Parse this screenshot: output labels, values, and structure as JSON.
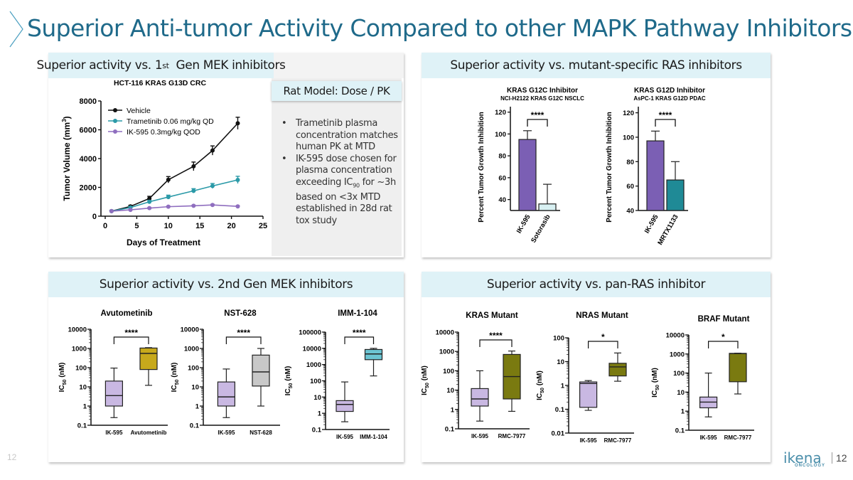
{
  "title": "Superior Anti-tumor Activity Compared to other MAPK Pathway Inhibitors",
  "page_number": "12",
  "corner_number": "12",
  "logo": {
    "word": "ikena",
    "sub": "ONCOLOGY"
  },
  "panels": {
    "top_left": {
      "header_main": "Superior activity vs. 1",
      "header_sup": "st",
      "header_rest": "  Gen MEK inhibitors"
    },
    "top_right": {
      "header": "Superior activity vs. mutant-specific RAS inhibitors"
    },
    "bottom_left": {
      "header": "Superior activity vs. 2nd Gen MEK inhibitors"
    },
    "bottom_right": {
      "header": "Superior activity vs. pan-RAS inhibitor"
    }
  },
  "rat_model": {
    "title": "Rat Model: Dose / PK",
    "bullets": [
      "Trametinib plasma concentration matches human PK at MTD",
      {
        "pre": "IK-595 dose chosen for plasma concentration exceeding IC",
        "sub": "90",
        "post": " for ~3h based on <3x MTD established in 28d rat tox study"
      }
    ]
  },
  "colors": {
    "vehicle": "#111111",
    "trametinib": "#2b9aa8",
    "ik595": "#8f6ebf",
    "ik595_bar": "#7b5fb4",
    "sotorasib": "#d8f0f2",
    "mrtx": "#1f8a96",
    "avuto": "#c7a91c",
    "nst": "#c8c8c8",
    "imm": "#6cc4d2",
    "rmc": "#7a7a10",
    "ik_box": "#c9b8e2"
  },
  "chart_data": [
    {
      "type": "line",
      "title": "HCT-116 KRAS G13D CRC",
      "xlabel": "Days of Treatment",
      "ylabel": "Tumor Volume (mm",
      "ylabel_sup": "3",
      "ylabel_end": ")",
      "xlim": [
        0,
        25
      ],
      "ylim": [
        0,
        8000
      ],
      "xticks": [
        "0",
        "5",
        "10",
        "15",
        "20",
        "25"
      ],
      "yticks": [
        "0",
        "2000",
        "4000",
        "6000",
        "8000"
      ],
      "x": [
        1,
        4,
        7,
        10,
        14,
        17,
        21
      ],
      "series": [
        {
          "name": "Vehicle",
          "values": [
            350,
            680,
            1230,
            2530,
            3460,
            4560,
            6450
          ],
          "errors": [
            40,
            80,
            150,
            220,
            300,
            320,
            420
          ]
        },
        {
          "name": "Trametinib 0.06 mg/kg QD",
          "values": [
            350,
            600,
            1000,
            1330,
            1760,
            2100,
            2520
          ],
          "errors": [
            40,
            60,
            100,
            130,
            150,
            170,
            250
          ]
        },
        {
          "name": "IK-595 0.3mg/kg QOD",
          "values": [
            350,
            440,
            560,
            660,
            720,
            780,
            680
          ],
          "errors": [
            20,
            30,
            40,
            40,
            40,
            40,
            40
          ]
        }
      ]
    },
    {
      "type": "bar",
      "title": "KRAS G12C Inhibitor",
      "subtitle": "NCI-H2122 KRAS G12C NSCLC",
      "ylabel": "Percent Tumor Growth Inhibition",
      "ylim": [
        30,
        125
      ],
      "yticks": [
        "40",
        "60",
        "80",
        "100",
        "120"
      ],
      "categories": [
        "IK-595",
        "Sotorasib"
      ],
      "values": [
        95,
        36
      ],
      "errors": [
        8,
        18
      ],
      "significance": "****"
    },
    {
      "type": "bar",
      "title": "KRAS G12D Inhibitor",
      "subtitle": "AsPC-1 KRAS G12D PDAC",
      "ylabel": "Percent Tumor Growth Inhibition",
      "ylim": [
        40,
        125
      ],
      "yticks": [
        "40",
        "60",
        "80",
        "100",
        "120"
      ],
      "categories": [
        "IK-595",
        "MRTX1133"
      ],
      "values": [
        97,
        65
      ],
      "errors": [
        8,
        15
      ],
      "significance": "****"
    },
    {
      "type": "box",
      "title": "Avutometinib",
      "ylabel": "IC",
      "ylabel_sub": "50",
      "ylabel_end": " (nM)",
      "scale": "log",
      "ylim_exp": [
        -1,
        4
      ],
      "yticks": [
        "0.1",
        "1",
        "10",
        "100",
        "1000",
        "10000"
      ],
      "categories": [
        "IK-595",
        "Avutometinib"
      ],
      "significance": "****",
      "boxes": [
        {
          "min": 0.25,
          "q1": 1,
          "median": 3.5,
          "q3": 20,
          "max": 95
        },
        {
          "min": 12,
          "q1": 80,
          "median": 550,
          "q3": 1050,
          "max": 1100
        }
      ]
    },
    {
      "type": "box",
      "title": "NST-628",
      "ylabel": "IC",
      "ylabel_sub": "50",
      "ylabel_end": " (nM)",
      "scale": "log",
      "ylim_exp": [
        -1,
        4
      ],
      "yticks": [
        "0.1",
        "1",
        "10",
        "100",
        "1000",
        "10000"
      ],
      "categories": [
        "IK-595",
        "NST-628"
      ],
      "significance": "****",
      "boxes": [
        {
          "min": 0.25,
          "q1": 1,
          "median": 3,
          "q3": 18,
          "max": 85
        },
        {
          "min": 1,
          "q1": 11,
          "median": 60,
          "q3": 450,
          "max": 1000
        }
      ]
    },
    {
      "type": "box",
      "title": "IMM-1-104",
      "ylabel": "IC",
      "ylabel_sub": "50",
      "ylabel_end": " (nM)",
      "scale": "log",
      "ylim_exp": [
        -1,
        5
      ],
      "yticks": [
        "0.1",
        "1",
        "10",
        "100",
        "1000",
        "10000",
        "100000"
      ],
      "categories": [
        "IK-595",
        "IMM-1-104"
      ],
      "significance": "****",
      "boxes": [
        {
          "min": 0.3,
          "q1": 1.3,
          "median": 3.5,
          "q3": 6,
          "max": 85
        },
        {
          "min": 200,
          "q1": 2000,
          "median": 4500,
          "q3": 8500,
          "max": 10000
        }
      ]
    },
    {
      "type": "box",
      "title": "KRAS Mutant",
      "ylabel": "IC",
      "ylabel_sub": "50",
      "ylabel_end": " (nM)",
      "scale": "log",
      "ylim_exp": [
        -1,
        4
      ],
      "yticks": [
        "0.1",
        "1",
        "10",
        "100",
        "1000",
        "10000"
      ],
      "categories": [
        "IK-595",
        "RMC-7977"
      ],
      "significance": "****",
      "boxes": [
        {
          "min": 0.25,
          "q1": 1.5,
          "median": 3.5,
          "q3": 12,
          "max": 100
        },
        {
          "min": 0.8,
          "q1": 3.5,
          "median": 50,
          "q3": 700,
          "max": 1050
        }
      ]
    },
    {
      "type": "box",
      "title": "NRAS Mutant",
      "ylabel": "IC",
      "ylabel_sub": "50",
      "ylabel_end": " (nM)",
      "scale": "log",
      "ylim_exp": [
        -2,
        2
      ],
      "yticks": [
        "0.01",
        "0.1",
        "1",
        "10",
        "100"
      ],
      "categories": [
        "IK-595",
        "RMC-7977"
      ],
      "significance": "*",
      "boxes": [
        {
          "min": 0.09,
          "q1": 0.12,
          "median": 1.2,
          "q3": 1.4,
          "max": 1.6
        },
        {
          "min": 1.5,
          "q1": 2.5,
          "median": 6,
          "q3": 8.5,
          "max": 23
        }
      ]
    },
    {
      "type": "box",
      "title": "BRAF Mutant",
      "ylabel": "IC",
      "ylabel_sub": "50",
      "ylabel_end": " (nM)",
      "scale": "log",
      "ylim_exp": [
        -1,
        4
      ],
      "yticks": [
        "0.1",
        "1",
        "10",
        "100",
        "1000",
        "10000"
      ],
      "categories": [
        "IK-595",
        "RMC-7977"
      ],
      "significance": "*",
      "boxes": [
        {
          "min": 0.5,
          "q1": 1.5,
          "median": 3,
          "q3": 5.5,
          "max": 100
        },
        {
          "min": 8,
          "q1": 35,
          "median": 1050,
          "q3": 1080,
          "max": 1100
        }
      ]
    }
  ]
}
